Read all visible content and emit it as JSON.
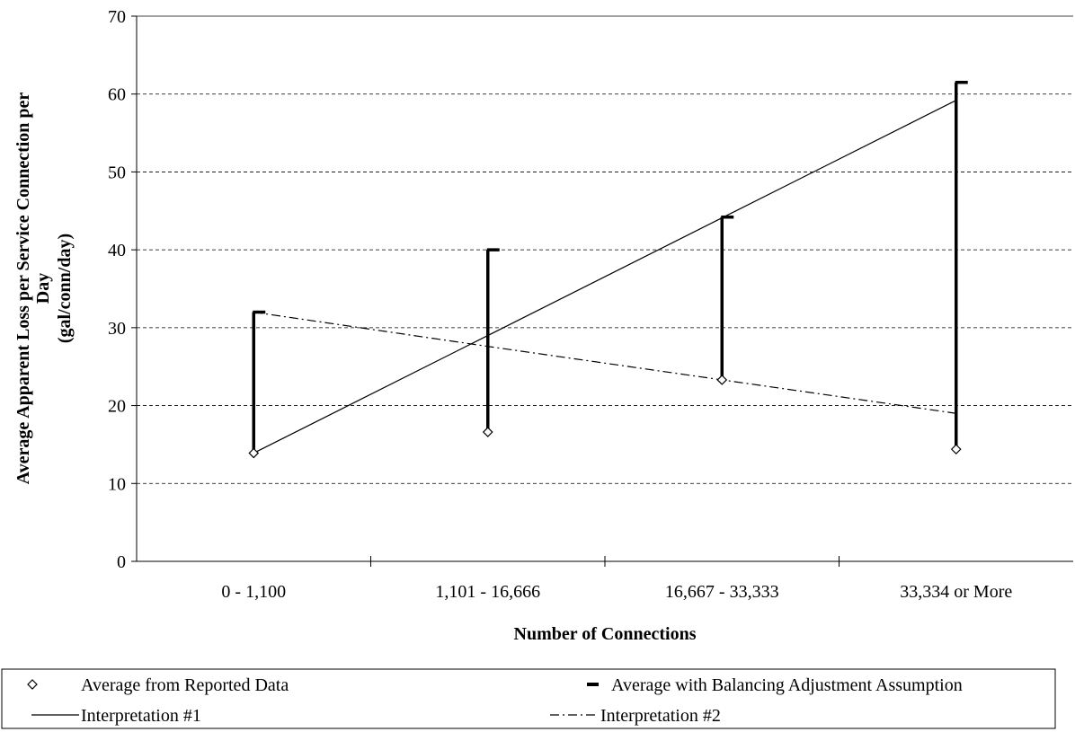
{
  "chart_data": {
    "type": "line",
    "xlabel": "Number of Connections",
    "ylabel_lines": [
      "Average Apparent Loss per Service Connection per",
      "Day",
      "(gal/conn/day)"
    ],
    "categories": [
      "0 - 1,100",
      "1,101 - 16,666",
      "16,667 - 33,333",
      "33,334 or More"
    ],
    "ylim": [
      0,
      70
    ],
    "yticks": [
      "0",
      "10",
      "20",
      "30",
      "40",
      "50",
      "60",
      "70"
    ],
    "grid": "horizontal dashed",
    "legend_position": "bottom",
    "series": [
      {
        "name": "Average from Reported Data",
        "style": "diamond-marker",
        "values": [
          13.9,
          16.6,
          23.3,
          14.4
        ]
      },
      {
        "name": "Average with Balancing Adjustment Assumption",
        "style": "dash-marker",
        "values": [
          32,
          40,
          44.2,
          61.5
        ]
      },
      {
        "name": "Interpretation #1",
        "style": "solid-line",
        "values": [
          13.9,
          29,
          44.1,
          59.2
        ]
      },
      {
        "name": "Interpretation #2",
        "style": "dash-dot-line",
        "values": [
          32,
          27.6,
          23.3,
          19
        ]
      }
    ]
  }
}
